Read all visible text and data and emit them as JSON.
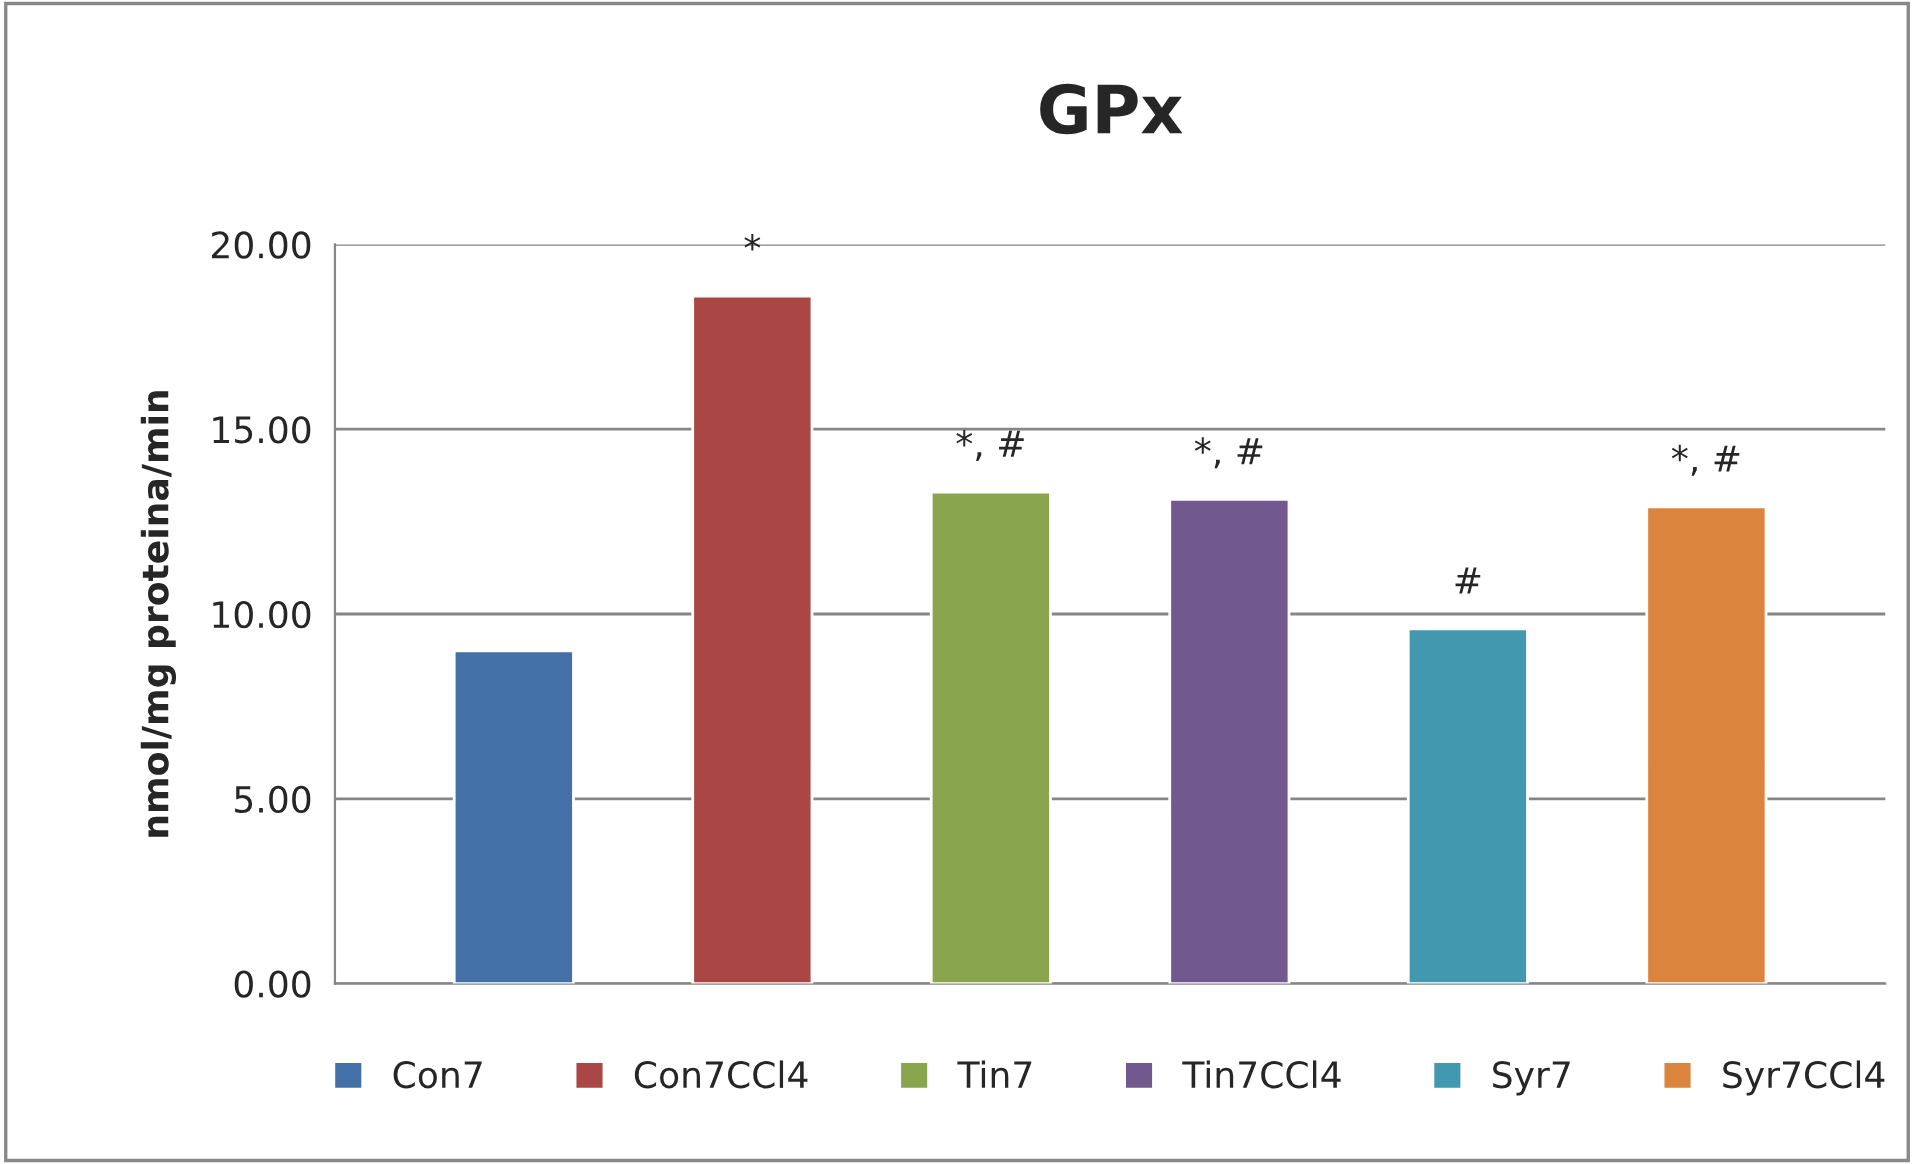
{
  "chart_data": {
    "type": "bar",
    "title": "GPx",
    "ylabel": "nmol/mg proteina/min",
    "categories": [
      null
    ],
    "series": [
      {
        "name": "Con7",
        "color": "#4470a8",
        "values": [
          9.0
        ],
        "value_labels": [
          null
        ]
      },
      {
        "name": "Con7CCl4",
        "color": "#aa4644",
        "values": [
          18.6
        ],
        "value_labels": [
          "*"
        ]
      },
      {
        "name": "Tin7",
        "color": "#89a54e",
        "values": [
          13.3
        ],
        "value_labels": [
          "*, #"
        ]
      },
      {
        "name": "Tin7CCl4",
        "color": "#71588f",
        "values": [
          13.1
        ],
        "value_labels": [
          "*, #"
        ]
      },
      {
        "name": "Syr7",
        "color": "#4298af",
        "values": [
          9.6
        ],
        "value_labels": [
          "#"
        ]
      },
      {
        "name": "Syr7CCl4",
        "color": "#db843d",
        "values": [
          12.9
        ],
        "value_labels": [
          "*, #"
        ]
      }
    ],
    "ylim": [
      0,
      20
    ],
    "yticks": [
      {
        "value": 0,
        "label": "0.00"
      },
      {
        "value": 5,
        "label": "5.00"
      },
      {
        "value": 10,
        "label": "10.00"
      },
      {
        "value": 15,
        "label": "15.00"
      },
      {
        "value": 20,
        "label": "20.00"
      }
    ],
    "grid": "y",
    "legend": "bottom"
  }
}
